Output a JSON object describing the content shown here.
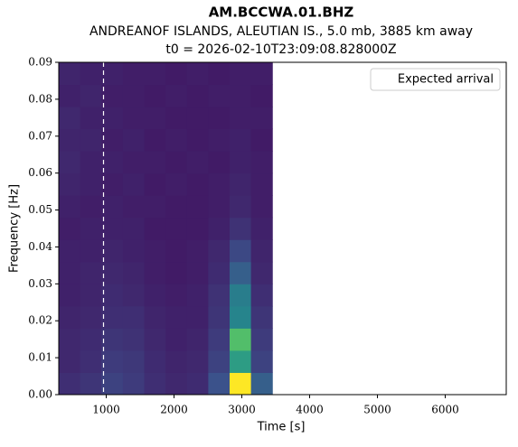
{
  "chart_data": {
    "type": "spectrogram",
    "title": "AM.BCCWA.01.BHZ",
    "subtitle": "ANDREANOF ISLANDS, ALEUTIAN IS., 5.0 mb, 3885 km away",
    "t0_label": "t0 = 2026-02-10T23:09:08.828000Z",
    "x_label": "Time [s]",
    "y_label": "Frequency [Hz]",
    "xlim": [
      300,
      6900
    ],
    "xticks": [
      1000,
      2000,
      3000,
      4000,
      5000,
      6000
    ],
    "ylim": [
      0,
      0.09
    ],
    "yticks": [
      {
        "value": 0,
        "label": "0.00"
      },
      {
        "value": 0.01,
        "label": "0.01"
      },
      {
        "value": 0.02,
        "label": "0.02"
      },
      {
        "value": 0.03,
        "label": "0.03"
      },
      {
        "value": 0.04,
        "label": "0.04"
      },
      {
        "value": 0.05,
        "label": "0.05"
      },
      {
        "value": 0.06,
        "label": "0.06"
      },
      {
        "value": 0.07,
        "label": "0.07"
      },
      {
        "value": 0.08,
        "label": "0.08"
      },
      {
        "value": 0.09,
        "label": "0.09"
      }
    ],
    "colormap": "viridis",
    "time_bins": [
      300,
      615,
      930,
      1245,
      1560,
      1875,
      2190,
      2505,
      2820,
      3135,
      3450
    ],
    "freq_bins": [
      0,
      0.006,
      0.012,
      0.018,
      0.024,
      0.03,
      0.036,
      0.042,
      0.048,
      0.054,
      0.06,
      0.066,
      0.072,
      0.078,
      0.084,
      0.09
    ],
    "values": [
      [
        0.14,
        0.16,
        0.2,
        0.18,
        0.14,
        0.12,
        0.13,
        0.25,
        1.0,
        0.3
      ],
      [
        0.12,
        0.14,
        0.18,
        0.17,
        0.13,
        0.11,
        0.12,
        0.2,
        0.55,
        0.2
      ],
      [
        0.12,
        0.13,
        0.16,
        0.15,
        0.12,
        0.1,
        0.11,
        0.18,
        0.7,
        0.18
      ],
      [
        0.11,
        0.12,
        0.14,
        0.14,
        0.11,
        0.1,
        0.1,
        0.16,
        0.45,
        0.16
      ],
      [
        0.1,
        0.11,
        0.13,
        0.12,
        0.1,
        0.09,
        0.1,
        0.15,
        0.42,
        0.14
      ],
      [
        0.1,
        0.11,
        0.12,
        0.11,
        0.09,
        0.08,
        0.09,
        0.13,
        0.3,
        0.12
      ],
      [
        0.1,
        0.1,
        0.11,
        0.1,
        0.09,
        0.08,
        0.09,
        0.12,
        0.22,
        0.11
      ],
      [
        0.09,
        0.1,
        0.1,
        0.1,
        0.08,
        0.08,
        0.08,
        0.1,
        0.15,
        0.1
      ],
      [
        0.1,
        0.09,
        0.1,
        0.09,
        0.09,
        0.08,
        0.08,
        0.09,
        0.12,
        0.09
      ],
      [
        0.11,
        0.1,
        0.09,
        0.1,
        0.08,
        0.09,
        0.08,
        0.09,
        0.11,
        0.09
      ],
      [
        0.12,
        0.1,
        0.1,
        0.09,
        0.09,
        0.08,
        0.09,
        0.08,
        0.1,
        0.09
      ],
      [
        0.11,
        0.11,
        0.09,
        0.1,
        0.08,
        0.09,
        0.08,
        0.09,
        0.1,
        0.08
      ],
      [
        0.12,
        0.1,
        0.1,
        0.09,
        0.09,
        0.08,
        0.08,
        0.08,
        0.09,
        0.09
      ],
      [
        0.1,
        0.11,
        0.09,
        0.09,
        0.08,
        0.09,
        0.08,
        0.09,
        0.09,
        0.08
      ],
      [
        0.11,
        0.1,
        0.1,
        0.09,
        0.09,
        0.08,
        0.09,
        0.08,
        0.09,
        0.09
      ]
    ],
    "markers": [
      {
        "name": "Expected arrival",
        "x": 960,
        "color": "#ffffff"
      }
    ],
    "legend": "upper right"
  }
}
